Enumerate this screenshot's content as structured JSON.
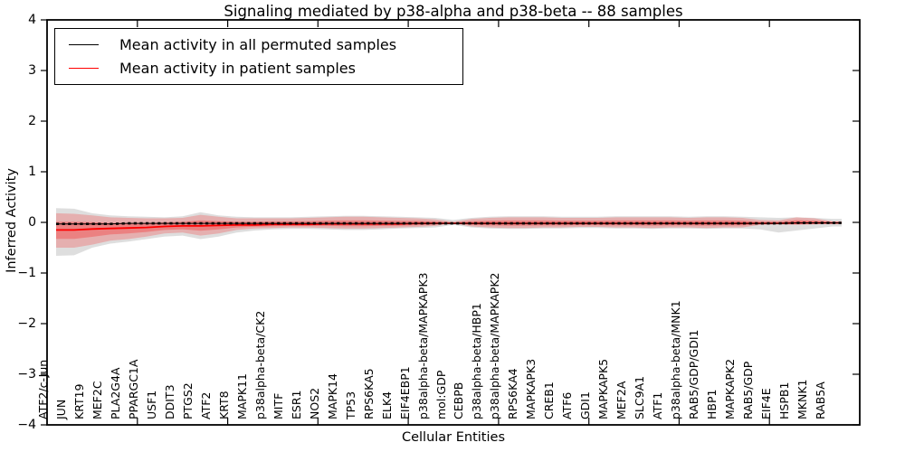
{
  "title": "Signaling mediated by p38-alpha and p38-beta -- 88 samples",
  "legend": {
    "items": [
      {
        "label": "Mean activity in all permuted samples",
        "color": "#000000"
      },
      {
        "label": "Mean activity in patient samples",
        "color": "#ff0000"
      }
    ]
  },
  "axes": {
    "x_label": "Cellular Entities",
    "y_label": "Inferred Activity",
    "y_ticks": [
      {
        "label": "4",
        "value": 4
      },
      {
        "label": "3",
        "value": 3
      },
      {
        "label": "2",
        "value": 2
      },
      {
        "label": "1",
        "value": 1
      },
      {
        "label": "0",
        "value": 0
      },
      {
        "label": "−1",
        "value": -1
      },
      {
        "label": "−2",
        "value": -2
      },
      {
        "label": "−3",
        "value": -3
      },
      {
        "label": "−4",
        "value": -4
      }
    ]
  },
  "chart_data": {
    "type": "line",
    "title": "Signaling mediated by p38-alpha and p38-beta -- 88 samples",
    "xlabel": "Cellular Entities",
    "ylabel": "Inferred Activity",
    "ylim": [
      -4,
      4
    ],
    "xlim": [
      0,
      45
    ],
    "grid": false,
    "legend_position": "upper left",
    "categories": [
      "ATF2/c-Jun",
      "JUN",
      "KRT19",
      "MEF2C",
      "PLA2G4A",
      "PPARGC1A",
      "USF1",
      "DDIT3",
      "PTGS2",
      "ATF2",
      "KRT8",
      "MAPK11",
      "p38alpha-beta/CK2",
      "MITF",
      "ESR1",
      "NOS2",
      "MAPK14",
      "TP53",
      "RPS6KA5",
      "ELK4",
      "EIF4EBP1",
      "p38alpha-beta/MAPKAPK3",
      "mol:GDP",
      "CEBPB",
      "p38alpha-beta/HBP1",
      "p38alpha-beta/MAPKAPK2",
      "RPS6KA4",
      "MAPKAPK3",
      "CREB1",
      "ATF6",
      "GDI1",
      "MAPKAPK5",
      "MEF2A",
      "SLC9A1",
      "ATF1",
      "p38alpha-beta/MNK1",
      "RAB5/GDP/GDI1",
      "HBP1",
      "MAPKAPK2",
      "RAB5/GDP",
      "EIF4E",
      "HSPB1",
      "MKNK1",
      "RAB5A"
    ],
    "series": [
      {
        "name": "Mean activity in all permuted samples",
        "color": "#000000",
        "style": "dashed",
        "values": [
          -0.03,
          -0.03,
          -0.03,
          -0.03,
          -0.02,
          -0.02,
          -0.02,
          -0.02,
          -0.02,
          -0.02,
          -0.02,
          -0.02,
          -0.02,
          -0.02,
          -0.02,
          -0.02,
          -0.02,
          -0.02,
          -0.02,
          -0.02,
          -0.02,
          -0.02,
          -0.02,
          -0.02,
          -0.02,
          -0.02,
          -0.02,
          -0.02,
          -0.02,
          -0.02,
          -0.02,
          -0.02,
          -0.02,
          -0.02,
          -0.02,
          -0.02,
          -0.02,
          -0.02,
          -0.02,
          -0.02,
          -0.02,
          -0.01,
          -0.01,
          -0.01
        ]
      },
      {
        "name": "Mean activity in patient samples",
        "color": "#ff0000",
        "style": "solid",
        "values": [
          -0.15,
          -0.15,
          -0.13,
          -0.12,
          -0.11,
          -0.1,
          -0.08,
          -0.07,
          -0.07,
          -0.06,
          -0.05,
          -0.05,
          -0.04,
          -0.04,
          -0.04,
          -0.03,
          -0.03,
          -0.03,
          -0.03,
          -0.03,
          -0.02,
          -0.02,
          -0.02,
          -0.02,
          -0.02,
          -0.02,
          -0.02,
          -0.02,
          -0.02,
          -0.02,
          -0.02,
          -0.02,
          -0.02,
          -0.02,
          -0.02,
          -0.02,
          -0.02,
          -0.02,
          -0.02,
          -0.02,
          -0.02,
          -0.01,
          -0.01,
          -0.01
        ]
      }
    ],
    "bands": [
      {
        "name": "permuted-samples-range",
        "color": "rgba(0,0,0,0.13)",
        "upper": [
          0.28,
          0.27,
          0.18,
          0.14,
          0.12,
          0.11,
          0.1,
          0.12,
          0.2,
          0.14,
          0.11,
          0.1,
          0.1,
          0.1,
          0.11,
          0.12,
          0.13,
          0.13,
          0.12,
          0.11,
          0.1,
          0.09,
          0.05,
          0.09,
          0.11,
          0.12,
          0.12,
          0.12,
          0.11,
          0.11,
          0.11,
          0.12,
          0.12,
          0.12,
          0.12,
          0.11,
          0.12,
          0.12,
          0.11,
          0.1,
          0.09,
          0.1,
          0.09,
          0.07
        ],
        "lower": [
          -0.66,
          -0.65,
          -0.5,
          -0.42,
          -0.38,
          -0.33,
          -0.28,
          -0.26,
          -0.33,
          -0.28,
          -0.2,
          -0.16,
          -0.14,
          -0.13,
          -0.13,
          -0.14,
          -0.15,
          -0.15,
          -0.14,
          -0.12,
          -0.11,
          -0.1,
          -0.05,
          -0.1,
          -0.12,
          -0.13,
          -0.13,
          -0.12,
          -0.12,
          -0.11,
          -0.11,
          -0.12,
          -0.12,
          -0.13,
          -0.12,
          -0.12,
          -0.13,
          -0.12,
          -0.12,
          -0.14,
          -0.2,
          -0.16,
          -0.12,
          -0.08
        ]
      },
      {
        "name": "patient-samples-range-outer",
        "color": "rgba(255,0,0,0.21)",
        "upper": [
          0.18,
          0.17,
          0.14,
          0.1,
          0.09,
          0.08,
          0.08,
          0.09,
          0.15,
          0.11,
          0.08,
          0.08,
          0.08,
          0.08,
          0.09,
          0.1,
          0.11,
          0.11,
          0.1,
          0.09,
          0.08,
          0.06,
          0.015,
          0.07,
          0.09,
          0.1,
          0.1,
          0.1,
          0.09,
          0.09,
          0.09,
          0.1,
          0.1,
          0.1,
          0.1,
          0.09,
          0.1,
          0.1,
          0.09,
          0.05,
          0.04,
          0.1,
          0.08,
          0.02
        ],
        "lower": [
          -0.5,
          -0.5,
          -0.44,
          -0.36,
          -0.33,
          -0.28,
          -0.22,
          -0.2,
          -0.26,
          -0.22,
          -0.15,
          -0.12,
          -0.11,
          -0.1,
          -0.1,
          -0.11,
          -0.12,
          -0.12,
          -0.11,
          -0.1,
          -0.09,
          -0.07,
          -0.02,
          -0.08,
          -0.1,
          -0.11,
          -0.11,
          -0.1,
          -0.1,
          -0.09,
          -0.09,
          -0.1,
          -0.1,
          -0.11,
          -0.1,
          -0.1,
          -0.11,
          -0.1,
          -0.1,
          -0.05,
          -0.04,
          -0.05,
          -0.04,
          -0.02
        ]
      },
      {
        "name": "patient-samples-range-inner",
        "color": "rgba(255,0,0,0.26)",
        "upper": [
          0.015,
          0.01,
          0.005,
          -0.01,
          -0.01,
          -0.01,
          0.0,
          0.01,
          0.04,
          0.025,
          0.015,
          0.015,
          0.02,
          0.02,
          0.025,
          0.035,
          0.04,
          0.04,
          0.035,
          0.03,
          0.03,
          0.02,
          -0.003,
          0.025,
          0.035,
          0.04,
          0.04,
          0.04,
          0.035,
          0.035,
          0.035,
          0.04,
          0.04,
          0.04,
          0.04,
          0.035,
          0.04,
          0.04,
          0.035,
          0.015,
          0.01,
          0.045,
          0.035,
          0.005
        ],
        "lower": [
          -0.325,
          -0.325,
          -0.285,
          -0.24,
          -0.22,
          -0.19,
          -0.15,
          -0.135,
          -0.165,
          -0.14,
          -0.1,
          -0.085,
          -0.075,
          -0.07,
          -0.07,
          -0.07,
          -0.075,
          -0.075,
          -0.07,
          -0.065,
          -0.055,
          -0.045,
          -0.02,
          -0.05,
          -0.06,
          -0.065,
          -0.065,
          -0.06,
          -0.06,
          -0.055,
          -0.055,
          -0.06,
          -0.06,
          -0.065,
          -0.06,
          -0.06,
          -0.065,
          -0.06,
          -0.06,
          -0.035,
          -0.03,
          -0.03,
          -0.025,
          -0.015
        ]
      }
    ]
  }
}
